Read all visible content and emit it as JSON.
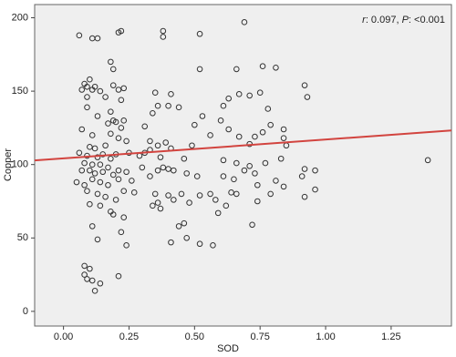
{
  "chart_data": {
    "type": "scatter",
    "x_label": "SOD",
    "y_label": "Copper",
    "annotation": [
      "r",
      ": 0.097, ",
      "P",
      ": <0.001"
    ],
    "xlim": [
      -0.11,
      1.48
    ],
    "ylim": [
      -10,
      209
    ],
    "xticks": [
      {
        "value": 0,
        "label": "0.00"
      },
      {
        "value": 0.25,
        "label": "0.25"
      },
      {
        "value": 0.5,
        "label": "0.50"
      },
      {
        "value": 0.75,
        "label": "0.75"
      },
      {
        "value": 1,
        "label": "1.00"
      },
      {
        "value": 1.25,
        "label": "1.25"
      }
    ],
    "yticks": [
      0,
      50,
      100,
      150,
      200
    ],
    "color": "#333333",
    "fit_line": {
      "color": "#d2443f",
      "x": [
        -0.11,
        1.48
      ],
      "y": [
        102.8,
        123.2
      ]
    },
    "x": [
      0.06,
      0.11,
      0.13,
      0.21,
      0.22,
      0.38,
      0.38,
      0.52,
      0.69,
      0.18,
      0.19,
      0.1,
      0.08,
      0.09,
      0.12,
      0.11,
      0.07,
      0.14,
      0.19,
      0.21,
      0.23,
      0.09,
      0.16,
      0.22,
      0.18,
      0.09,
      0.13,
      0.19,
      0.2,
      0.23,
      0.17,
      0.22,
      0.07,
      0.11,
      0.18,
      0.21,
      0.24,
      0.1,
      0.12,
      0.16,
      0.06,
      0.09,
      0.13,
      0.15,
      0.18,
      0.2,
      0.25,
      0.29,
      0.08,
      0.11,
      0.14,
      0.17,
      0.21,
      0.07,
      0.1,
      0.12,
      0.15,
      0.19,
      0.24,
      0.05,
      0.08,
      0.11,
      0.14,
      0.17,
      0.21,
      0.26,
      0.09,
      0.13,
      0.16,
      0.2,
      0.23,
      0.27,
      0.1,
      0.14,
      0.18,
      0.19,
      0.23,
      0.11,
      0.22,
      0.13,
      0.24,
      0.08,
      0.1,
      0.08,
      0.09,
      0.11,
      0.14,
      0.12,
      0.21,
      0.31,
      0.34,
      0.35,
      0.36,
      0.4,
      0.41,
      0.44,
      0.52,
      0.5,
      0.53,
      0.56,
      0.6,
      0.33,
      0.36,
      0.39,
      0.41,
      0.31,
      0.33,
      0.37,
      0.38,
      0.4,
      0.46,
      0.49,
      0.3,
      0.33,
      0.36,
      0.42,
      0.47,
      0.51,
      0.35,
      0.4,
      0.45,
      0.52,
      0.56,
      0.34,
      0.37,
      0.36,
      0.42,
      0.48,
      0.58,
      0.44,
      0.46,
      0.47,
      0.41,
      0.52,
      0.57,
      0.59,
      0.61,
      0.63,
      0.66,
      0.67,
      0.71,
      0.75,
      0.76,
      0.81,
      0.78,
      0.84,
      0.85,
      0.63,
      0.67,
      0.71,
      0.73,
      0.76,
      0.79,
      0.84,
      0.61,
      0.66,
      0.69,
      0.73,
      0.77,
      0.83,
      0.61,
      0.65,
      0.71,
      0.74,
      0.81,
      0.84,
      0.64,
      0.66,
      0.62,
      0.74,
      0.79,
      0.72,
      0.92,
      0.93,
      0.92,
      0.91,
      0.96,
      0.92,
      0.96,
      1.39
    ],
    "values": [
      188,
      186,
      186,
      190,
      191,
      191,
      187,
      189,
      197,
      170,
      165,
      158,
      155,
      153,
      153,
      151,
      151,
      150,
      154,
      151,
      152,
      146,
      146,
      144,
      136,
      139,
      133,
      130,
      129,
      130,
      128,
      125,
      124,
      120,
      121,
      118,
      116,
      112,
      111,
      113,
      108,
      106,
      105,
      107,
      104,
      107,
      108,
      106,
      101,
      100,
      100,
      98,
      96,
      96,
      96,
      94,
      95,
      93,
      95,
      88,
      86,
      90,
      88,
      86,
      90,
      89,
      82,
      80,
      78,
      76,
      82,
      81,
      73,
      72,
      68,
      66,
      64,
      58,
      54,
      49,
      45,
      31,
      29,
      25,
      22,
      21,
      19,
      14,
      24,
      126,
      135,
      149,
      140,
      140,
      148,
      139,
      165,
      127,
      133,
      120,
      130,
      116,
      113,
      115,
      111,
      108,
      110,
      105,
      98,
      97,
      104,
      113,
      98,
      92,
      96,
      96,
      94,
      92,
      80,
      79,
      80,
      79,
      80,
      72,
      70,
      74,
      76,
      74,
      76,
      58,
      60,
      50,
      47,
      46,
      45,
      67,
      140,
      145,
      165,
      148,
      147,
      149,
      167,
      166,
      138,
      124,
      113,
      124,
      119,
      114,
      119,
      122,
      127,
      118,
      103,
      101,
      96,
      94,
      101,
      104,
      92,
      90,
      99,
      86,
      89,
      85,
      81,
      80,
      72,
      75,
      80,
      59,
      154,
      146,
      97,
      92,
      96,
      78,
      83,
      103
    ]
  }
}
